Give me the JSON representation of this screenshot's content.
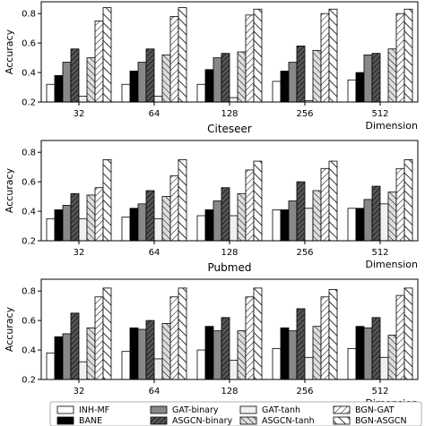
{
  "chart_data": [
    {
      "type": "bar",
      "title": "",
      "xlabel": "Dimension",
      "ylabel": "Accuracy",
      "ylim": [
        0.2,
        0.88
      ],
      "yticks": [
        0.2,
        0.4,
        0.6,
        0.8
      ],
      "categories": [
        "32",
        "64",
        "128",
        "256",
        "512"
      ],
      "series": [
        {
          "name": "INH-MF",
          "values": [
            0.32,
            0.32,
            0.32,
            0.34,
            0.35
          ]
        },
        {
          "name": "BANE",
          "values": [
            0.38,
            0.41,
            0.42,
            0.41,
            0.4
          ]
        },
        {
          "name": "GAT-binary",
          "values": [
            0.47,
            0.47,
            0.5,
            0.47,
            0.52
          ]
        },
        {
          "name": "ASGCN-binary",
          "values": [
            0.56,
            0.56,
            0.53,
            0.58,
            0.53
          ]
        },
        {
          "name": "GAT-tanh",
          "values": [
            0.24,
            0.24,
            0.23,
            0.21,
            0.19
          ]
        },
        {
          "name": "ASGCN-tanh",
          "values": [
            0.5,
            0.52,
            0.54,
            0.55,
            0.56
          ]
        },
        {
          "name": "BGN-GAT",
          "values": [
            0.75,
            0.78,
            0.79,
            0.8,
            0.8
          ]
        },
        {
          "name": "BGN-ASGCN",
          "values": [
            0.84,
            0.84,
            0.83,
            0.83,
            0.83
          ]
        }
      ]
    },
    {
      "type": "bar",
      "title": "Citeseer",
      "xlabel": "Dimension",
      "ylabel": "Accuracy",
      "ylim": [
        0.2,
        0.88
      ],
      "yticks": [
        0.2,
        0.4,
        0.6,
        0.8
      ],
      "categories": [
        "32",
        "64",
        "128",
        "256",
        "512"
      ],
      "series": [
        {
          "name": "INH-MF",
          "values": [
            0.35,
            0.36,
            0.37,
            0.41,
            0.42
          ]
        },
        {
          "name": "BANE",
          "values": [
            0.41,
            0.42,
            0.41,
            0.41,
            0.42
          ]
        },
        {
          "name": "GAT-binary",
          "values": [
            0.44,
            0.45,
            0.47,
            0.47,
            0.48
          ]
        },
        {
          "name": "ASGCN-binary",
          "values": [
            0.52,
            0.54,
            0.56,
            0.6,
            0.57
          ]
        },
        {
          "name": "GAT-tanh",
          "values": [
            0.35,
            0.35,
            0.37,
            0.42,
            0.45
          ]
        },
        {
          "name": "ASGCN-tanh",
          "values": [
            0.51,
            0.5,
            0.52,
            0.54,
            0.53
          ]
        },
        {
          "name": "BGN-GAT",
          "values": [
            0.56,
            0.64,
            0.68,
            0.69,
            0.69
          ]
        },
        {
          "name": "BGN-ASGCN",
          "values": [
            0.75,
            0.75,
            0.74,
            0.74,
            0.75
          ]
        }
      ]
    },
    {
      "type": "bar",
      "title": "Pubmed",
      "xlabel": "Dimension",
      "ylabel": "Accuracy",
      "ylim": [
        0.2,
        0.88
      ],
      "yticks": [
        0.2,
        0.4,
        0.6,
        0.8
      ],
      "categories": [
        "32",
        "64",
        "128",
        "256",
        "512"
      ],
      "series": [
        {
          "name": "INH-MF",
          "values": [
            0.38,
            0.39,
            0.4,
            0.41,
            0.41
          ]
        },
        {
          "name": "BANE",
          "values": [
            0.49,
            0.55,
            0.56,
            0.55,
            0.56
          ]
        },
        {
          "name": "GAT-binary",
          "values": [
            0.51,
            0.54,
            0.53,
            0.53,
            0.55
          ]
        },
        {
          "name": "ASGCN-binary",
          "values": [
            0.65,
            0.6,
            0.62,
            0.68,
            0.62
          ]
        },
        {
          "name": "GAT-tanh",
          "values": [
            0.32,
            0.34,
            0.33,
            0.35,
            0.35
          ]
        },
        {
          "name": "ASGCN-tanh",
          "values": [
            0.55,
            0.58,
            0.53,
            0.56,
            0.5
          ]
        },
        {
          "name": "BGN-GAT",
          "values": [
            0.76,
            0.76,
            0.76,
            0.76,
            0.77
          ]
        },
        {
          "name": "BGN-ASGCN",
          "values": [
            0.82,
            0.82,
            0.82,
            0.81,
            0.82
          ]
        }
      ]
    }
  ],
  "legend": {
    "placement": "bottom",
    "items": [
      "INH-MF",
      "BANE",
      "GAT-binary",
      "ASGCN-binary",
      "GAT-tanh",
      "ASGCN-tanh",
      "BGN-GAT",
      "BGN-ASGCN"
    ]
  }
}
